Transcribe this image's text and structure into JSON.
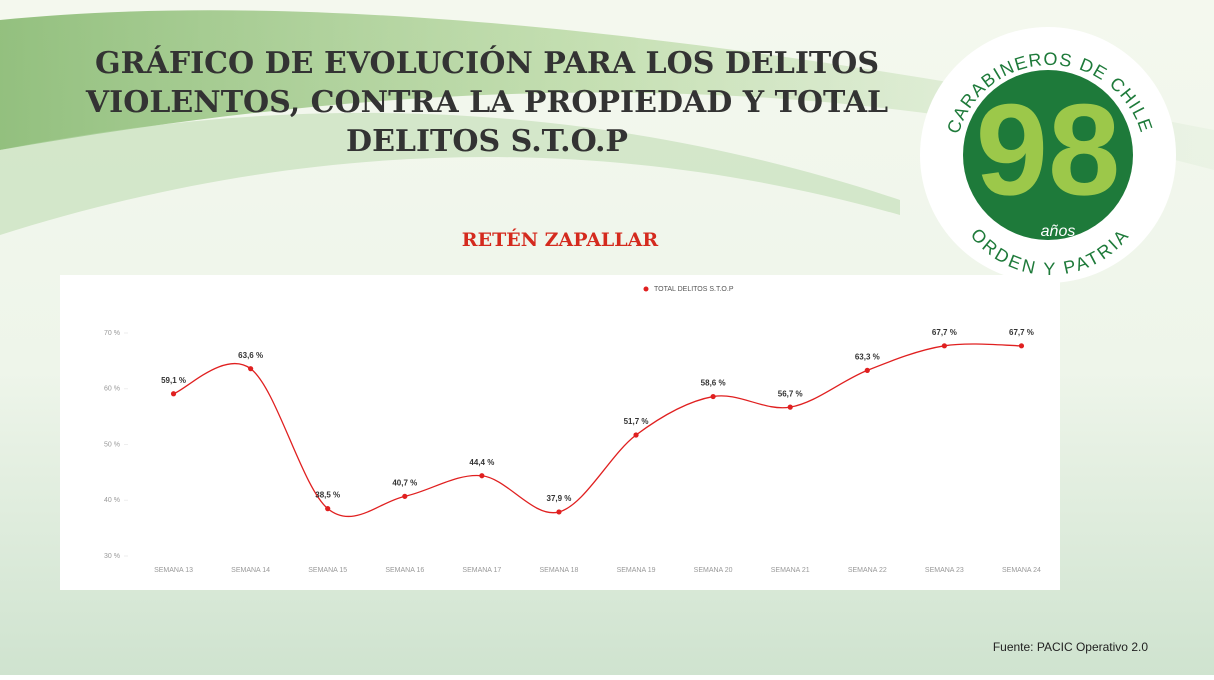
{
  "chart_data": {
    "type": "line",
    "title": [
      "GRÁFICO DE EVOLUCIÓN PARA LOS DELITOS",
      "VIOLENTOS, CONTRA LA PROPIEDAD Y TOTAL",
      "DELITOS S.T.O.P"
    ],
    "subtitle": "RETÉN ZAPALLAR",
    "categories": [
      "SEMANA 13",
      "SEMANA 14",
      "SEMANA 15",
      "SEMANA 16",
      "SEMANA 17",
      "SEMANA 18",
      "SEMANA 19",
      "SEMANA 20",
      "SEMANA 21",
      "SEMANA 22",
      "SEMANA 23",
      "SEMANA 24"
    ],
    "series": [
      {
        "name": "TOTAL DELITOS S.T.O.P",
        "color": "#e02020",
        "values": [
          59.1,
          63.6,
          38.5,
          40.7,
          44.4,
          37.9,
          51.7,
          58.6,
          56.7,
          63.3,
          67.7,
          67.7
        ],
        "value_labels": [
          "59,1 %",
          "63,6 %",
          "38,5 %",
          "40,7 %",
          "44,4 %",
          "37,9 %",
          "51,7 %",
          "58,6 %",
          "56,7 %",
          "63,3 %",
          "67,7 %",
          "67,7 %"
        ]
      }
    ],
    "ylim": [
      30,
      70
    ],
    "yticks": [
      {
        "value": 30,
        "label": "30 %"
      },
      {
        "value": 40,
        "label": "40 %"
      },
      {
        "value": 50,
        "label": "50 %"
      },
      {
        "value": 60,
        "label": "60 %"
      },
      {
        "value": 70,
        "label": "70 %"
      }
    ],
    "smooth": true,
    "source": "Fuente: PACIC Operativo 2.0"
  },
  "logo": {
    "top_text": "CARABINEROS DE CHILE",
    "number": "98",
    "years": "años",
    "bottom_text": "ORDEN Y PATRIA"
  }
}
